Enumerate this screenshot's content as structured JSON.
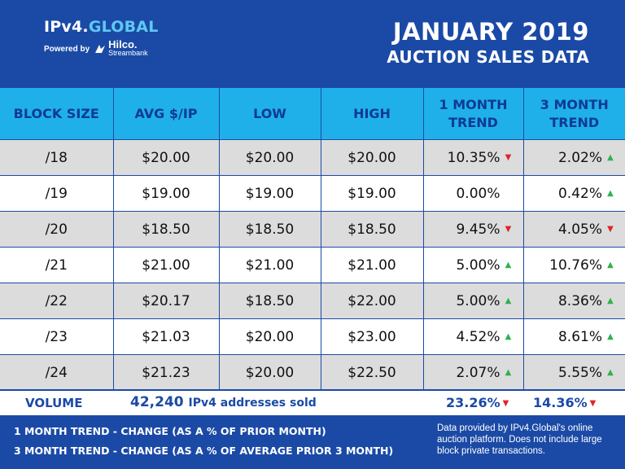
{
  "header": {
    "logo_ipv4": "IPv4.",
    "logo_global": "GLOBAL",
    "powered_by": "Powered by",
    "hilco_name": "Hilco.",
    "hilco_sub": "Streambank",
    "title_line1": "JANUARY 2019",
    "title_line2": "AUCTION SALES DATA"
  },
  "columns": [
    "BLOCK SIZE",
    "AVG $/IP",
    "LOW",
    "HIGH",
    "1 MONTH TREND",
    "3 MONTH TREND"
  ],
  "rows": [
    {
      "block": "/18",
      "avg": "$20.00",
      "low": "$20.00",
      "high": "$20.00",
      "t1": "10.35%",
      "t1_dir": "down",
      "t3": "2.02%",
      "t3_dir": "up"
    },
    {
      "block": "/19",
      "avg": "$19.00",
      "low": "$19.00",
      "high": "$19.00",
      "t1": "0.00%",
      "t1_dir": "none",
      "t3": "0.42%",
      "t3_dir": "up"
    },
    {
      "block": "/20",
      "avg": "$18.50",
      "low": "$18.50",
      "high": "$18.50",
      "t1": "9.45%",
      "t1_dir": "down",
      "t3": "4.05%",
      "t3_dir": "down"
    },
    {
      "block": "/21",
      "avg": "$21.00",
      "low": "$21.00",
      "high": "$21.00",
      "t1": "5.00%",
      "t1_dir": "up",
      "t3": "10.76%",
      "t3_dir": "up"
    },
    {
      "block": "/22",
      "avg": "$20.17",
      "low": "$18.50",
      "high": "$22.00",
      "t1": "5.00%",
      "t1_dir": "up",
      "t3": "8.36%",
      "t3_dir": "up"
    },
    {
      "block": "/23",
      "avg": "$21.03",
      "low": "$20.00",
      "high": "$23.00",
      "t1": "4.52%",
      "t1_dir": "up",
      "t3": "8.61%",
      "t3_dir": "up"
    },
    {
      "block": "/24",
      "avg": "$21.23",
      "low": "$20.00",
      "high": "$22.50",
      "t1": "2.07%",
      "t1_dir": "up",
      "t3": "5.55%",
      "t3_dir": "up"
    }
  ],
  "volume": {
    "label": "VOLUME",
    "count": "42,240",
    "unit": "IPv4 addresses sold",
    "t1": "23.26%",
    "t1_dir": "down",
    "t3": "14.36%",
    "t3_dir": "down"
  },
  "footer": {
    "note1": "1 MONTH TREND - CHANGE (AS A % OF PRIOR MONTH)",
    "note2": "3 MONTH TREND - CHANGE (AS A % OF AVERAGE PRIOR 3 MONTH)",
    "disclaimer": "Data provided by IPv4.Global's online auction platform. Does not include large block private transactions."
  },
  "colors": {
    "brand_blue": "#1b4aa6",
    "header_cyan": "#1fb0ea",
    "logo_cyan": "#5ec8f3",
    "up_green": "#2db34a",
    "down_red": "#e02424",
    "row_gray": "#dcdcdc"
  },
  "icons": {
    "up": "triangle-up-icon",
    "down": "triangle-down-icon",
    "hilco": "hilco-bird-icon"
  }
}
